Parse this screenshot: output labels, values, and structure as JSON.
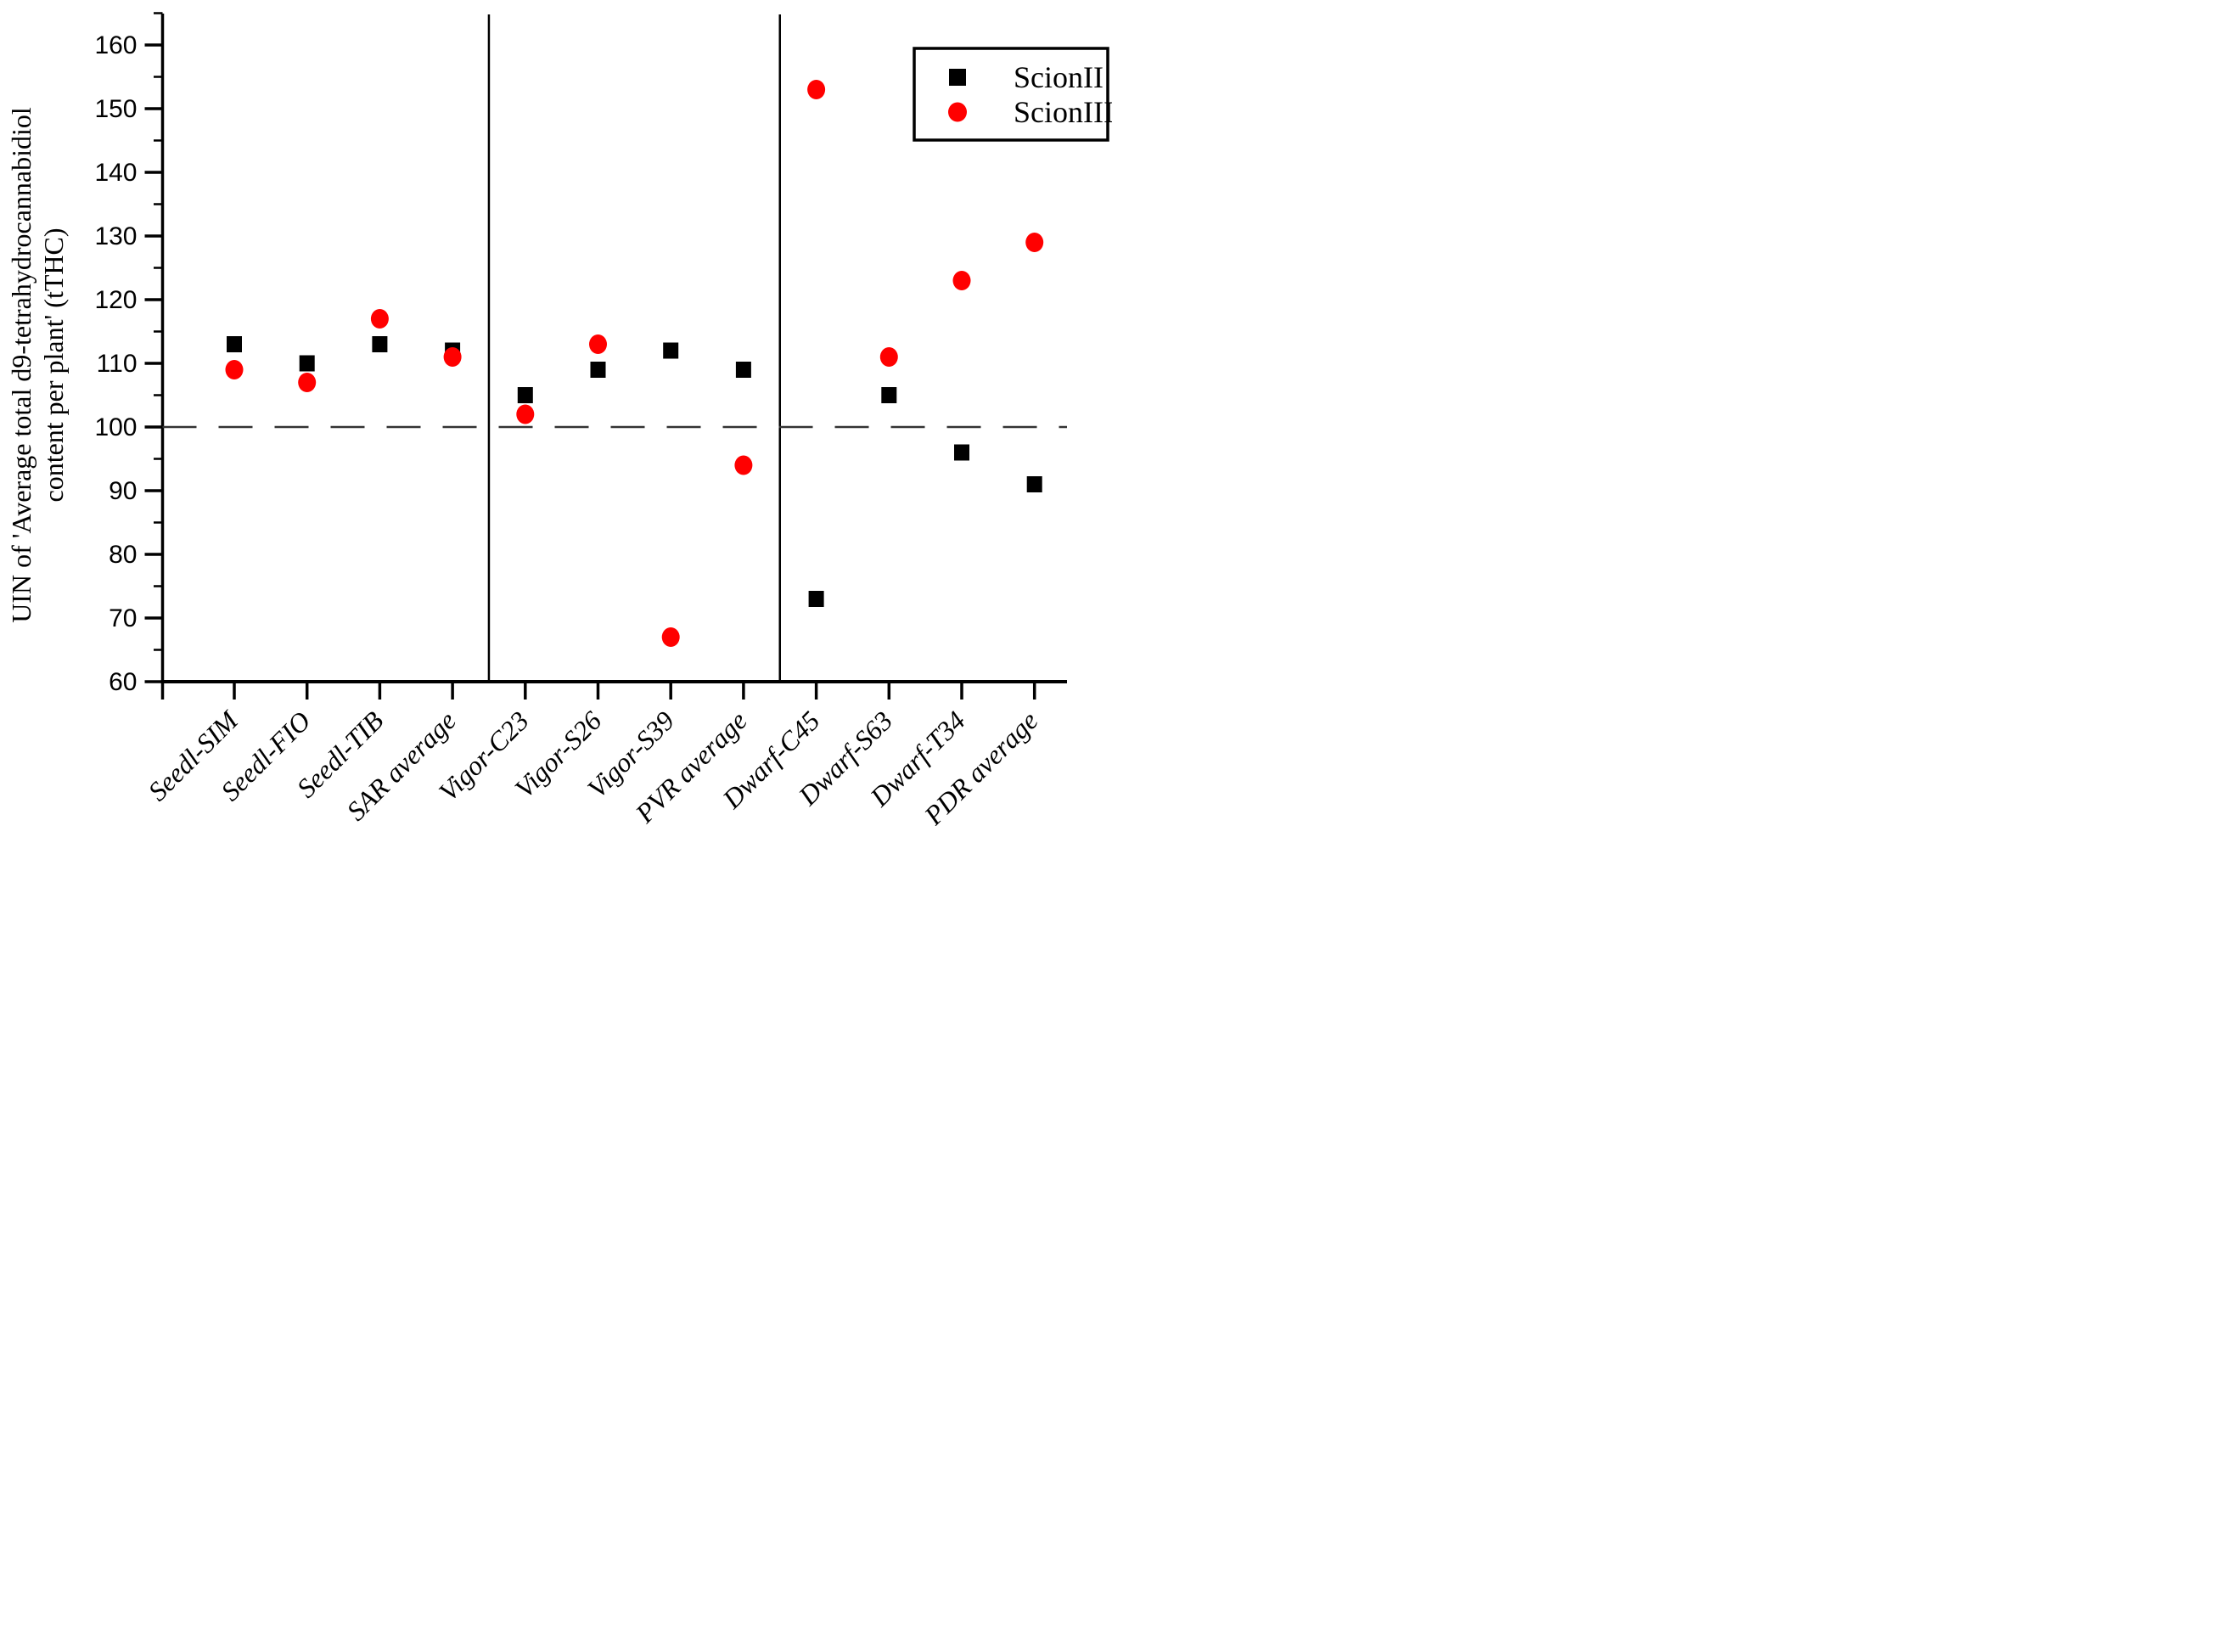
{
  "figure": {
    "background_color": "#ffffff",
    "ylabel_line1": "UIN of 'Average total d9-tetrahydrocannabidiol",
    "ylabel_line2": "content per plant' (tTHC)"
  },
  "chart_data": {
    "type": "scatter",
    "title": "",
    "xlabel": "",
    "ylabel": "UIN of 'Average total d9-tetrahydrocannabidiol content per plant' (tTHC)",
    "categories": [
      "Seedl-SIM",
      "Seedl-FIO",
      "Seedl-TIB",
      "SAR average",
      "Vigor-C23",
      "Vigor-S26",
      "Vigor-S39",
      "PVR average",
      "Dwarf-C45",
      "Dwarf-S63",
      "Dwarf-T34",
      "PDR average"
    ],
    "series": [
      {
        "name": "ScionII",
        "marker": "square",
        "color": "#000000",
        "values": [
          113,
          110,
          113,
          112,
          105,
          109,
          112,
          109,
          73,
          105,
          96,
          91
        ]
      },
      {
        "name": "ScionIII",
        "marker": "circle",
        "color": "#ff0000",
        "values": [
          109,
          107,
          117,
          111,
          102,
          113,
          67,
          94,
          153,
          111,
          123,
          129
        ]
      }
    ],
    "y_axis": {
      "min": 60,
      "max": 165,
      "major_ticks": [
        60,
        70,
        80,
        90,
        100,
        110,
        120,
        130,
        140,
        150,
        160
      ],
      "minor_tick_step": 5
    },
    "reference_line": {
      "value": 100,
      "style": "dashed",
      "color": "#333333"
    },
    "group_divider_after_categories": [
      4,
      8
    ],
    "grid": "off",
    "legend": {
      "position": "top-right",
      "entries": [
        {
          "label": "ScionII",
          "marker": "square",
          "color": "#000000"
        },
        {
          "label": "ScionIII",
          "marker": "circle",
          "color": "#ff0000"
        }
      ]
    }
  }
}
